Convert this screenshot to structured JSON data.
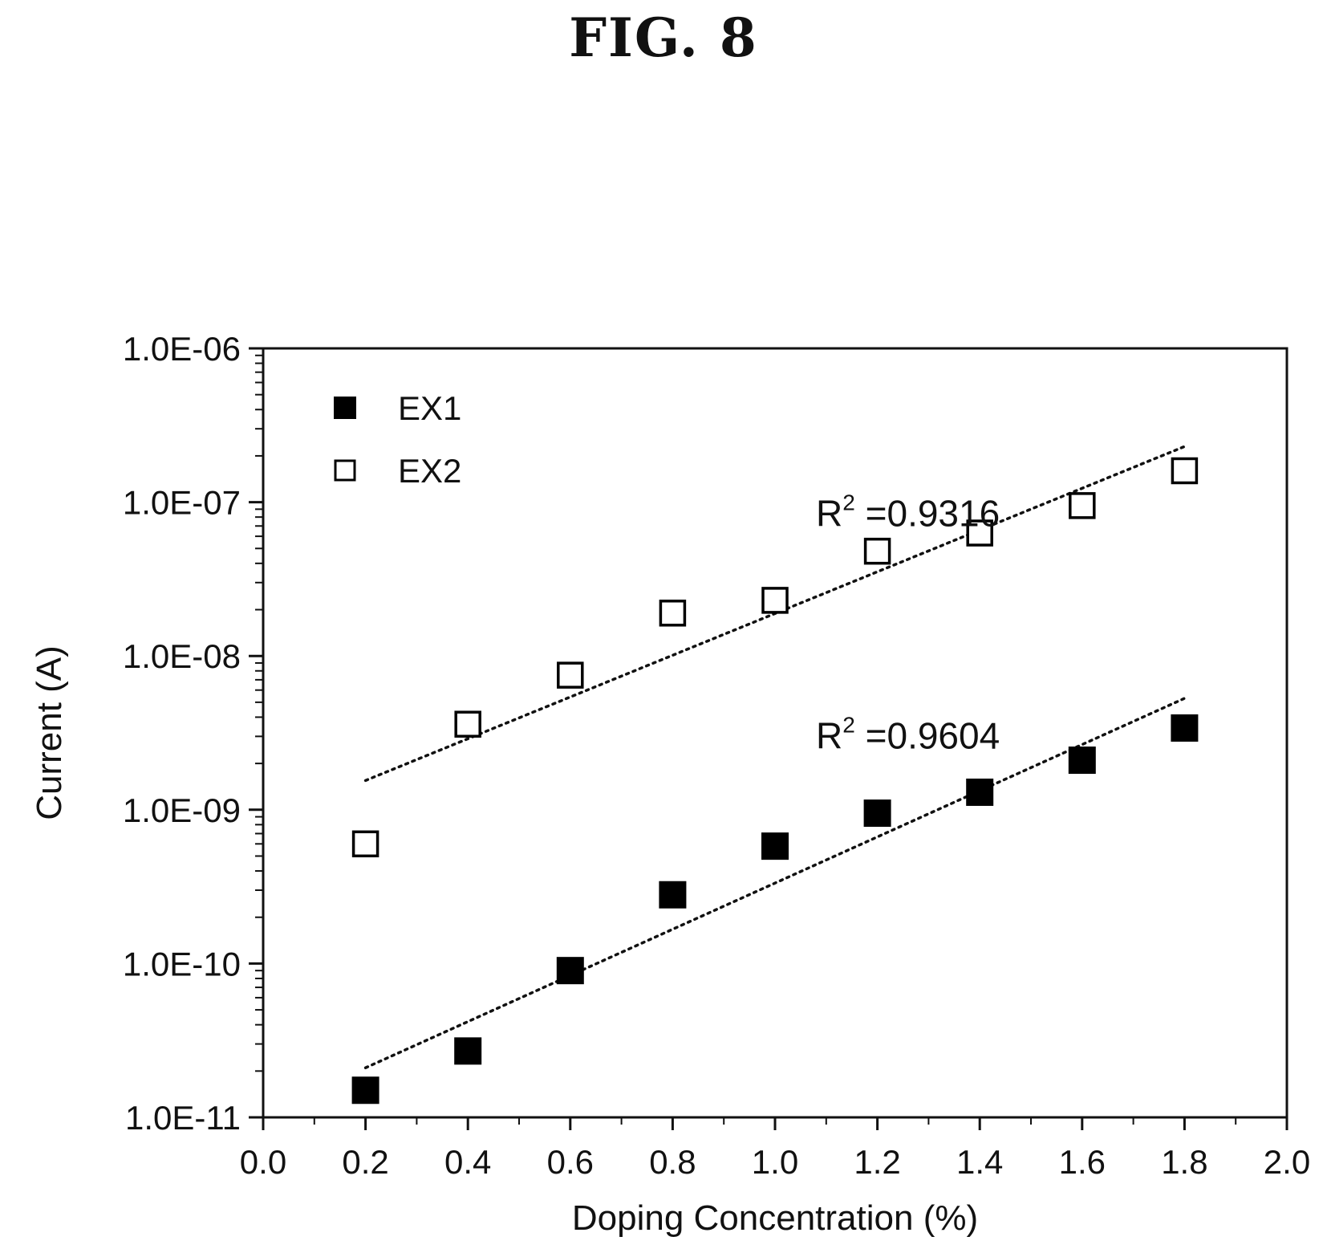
{
  "figure_title": "FIG. 8",
  "chart_data": {
    "type": "scatter",
    "xlabel": "Doping Concentration (%)",
    "ylabel": "Current (A)",
    "xlim": [
      0.0,
      2.0
    ],
    "ylim": [
      1e-11,
      1e-06
    ],
    "yscale": "log",
    "x_ticks": [
      "0.0",
      "0.2",
      "0.4",
      "0.6",
      "0.8",
      "1.0",
      "1.2",
      "1.4",
      "1.6",
      "1.8",
      "2.0"
    ],
    "y_ticks": [
      "1.0E-11",
      "1.0E-10",
      "1.0E-09",
      "1.0E-08",
      "1.0E-07",
      "1.0E-06"
    ],
    "legend_position": "top-left",
    "series": [
      {
        "name": "EX1",
        "marker": "filled-square",
        "color": "#000000",
        "x": [
          0.2,
          0.4,
          0.6,
          0.8,
          1.0,
          1.2,
          1.4,
          1.6,
          1.8
        ],
        "y": [
          1.5e-11,
          2.7e-11,
          9e-11,
          2.8e-10,
          5.8e-10,
          9.5e-10,
          1.3e-09,
          2.1e-09,
          3.4e-09
        ],
        "trendline": {
          "x": [
            0.2,
            1.8
          ],
          "y": [
            2.1e-11,
            5.3e-09
          ]
        },
        "annotation": {
          "prefix": "R",
          "sup": "2",
          "text": " =0.9604",
          "x": 1.08,
          "y": 2.5e-09
        }
      },
      {
        "name": "EX2",
        "marker": "open-square",
        "color": "#000000",
        "x": [
          0.2,
          0.4,
          0.6,
          0.8,
          1.0,
          1.2,
          1.4,
          1.6,
          1.8
        ],
        "y": [
          6e-10,
          3.6e-09,
          7.5e-09,
          1.9e-08,
          2.3e-08,
          4.8e-08,
          6.3e-08,
          9.5e-08,
          1.6e-07
        ],
        "trendline": {
          "x": [
            0.2,
            1.8
          ],
          "y": [
            1.55e-09,
            2.3e-07
          ]
        },
        "annotation": {
          "prefix": "R",
          "sup": "2",
          "text": " =0.9316",
          "x": 1.08,
          "y": 7e-08
        }
      }
    ]
  }
}
